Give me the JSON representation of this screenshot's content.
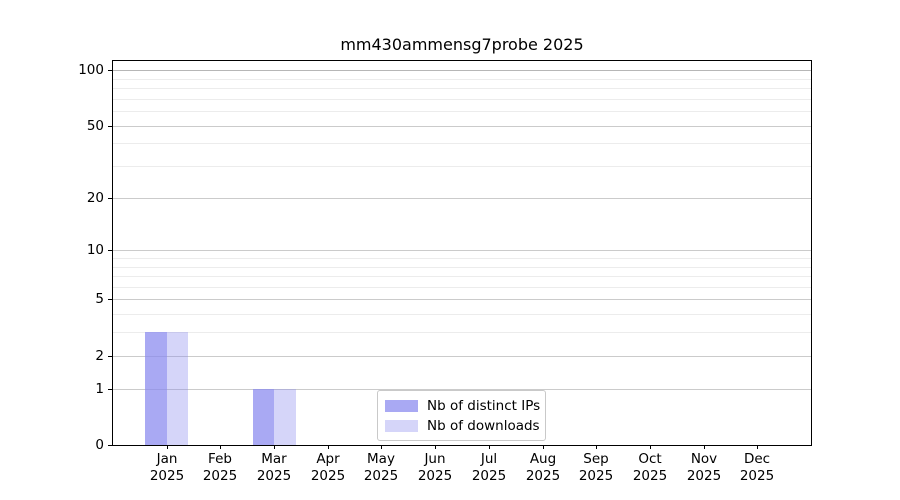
{
  "title": "mm430ammensg7probe 2025",
  "colors": {
    "background": "#ffffff",
    "spine": "#000000",
    "grid_major": "#cbcbcb",
    "grid_major_top": "#b6b6b6",
    "grid_minor": "#ececec",
    "bar_distinct_ips": "rgba(136,136,238,0.72)",
    "bar_downloads": "rgba(136,136,238,0.35)"
  },
  "legend": {
    "items": [
      {
        "label": "Nb of distinct IPs",
        "color": "rgba(136,136,238,0.72)"
      },
      {
        "label": "Nb of downloads",
        "color": "rgba(136,136,238,0.35)"
      }
    ]
  },
  "chart_data": {
    "type": "bar",
    "title": "mm430ammensg7probe 2025",
    "xlabel": "",
    "ylabel": "",
    "categories": [
      {
        "month": "Jan",
        "year": "2025"
      },
      {
        "month": "Feb",
        "year": "2025"
      },
      {
        "month": "Mar",
        "year": "2025"
      },
      {
        "month": "Apr",
        "year": "2025"
      },
      {
        "month": "May",
        "year": "2025"
      },
      {
        "month": "Jun",
        "year": "2025"
      },
      {
        "month": "Jul",
        "year": "2025"
      },
      {
        "month": "Aug",
        "year": "2025"
      },
      {
        "month": "Sep",
        "year": "2025"
      },
      {
        "month": "Oct",
        "year": "2025"
      },
      {
        "month": "Nov",
        "year": "2025"
      },
      {
        "month": "Dec",
        "year": "2025"
      }
    ],
    "series": [
      {
        "name": "Nb of distinct IPs",
        "color": "rgba(136,136,238,0.72)",
        "values": [
          3,
          0,
          1,
          0,
          0,
          0,
          0,
          0,
          0,
          0,
          0,
          0
        ]
      },
      {
        "name": "Nb of downloads",
        "color": "rgba(136,136,238,0.35)",
        "values": [
          3,
          0,
          1,
          0,
          0,
          0,
          0,
          0,
          0,
          0,
          0,
          0
        ]
      }
    ],
    "yaxis": {
      "scale": "log1p",
      "major_ticks": [
        0,
        1,
        2,
        5,
        10,
        20,
        50,
        100
      ],
      "minor_ticks": [
        3,
        4,
        6,
        7,
        8,
        9,
        30,
        40,
        60,
        70,
        80,
        90
      ],
      "ylim": [
        0,
        112
      ]
    },
    "grid": "on",
    "legend_position": "lower center"
  }
}
